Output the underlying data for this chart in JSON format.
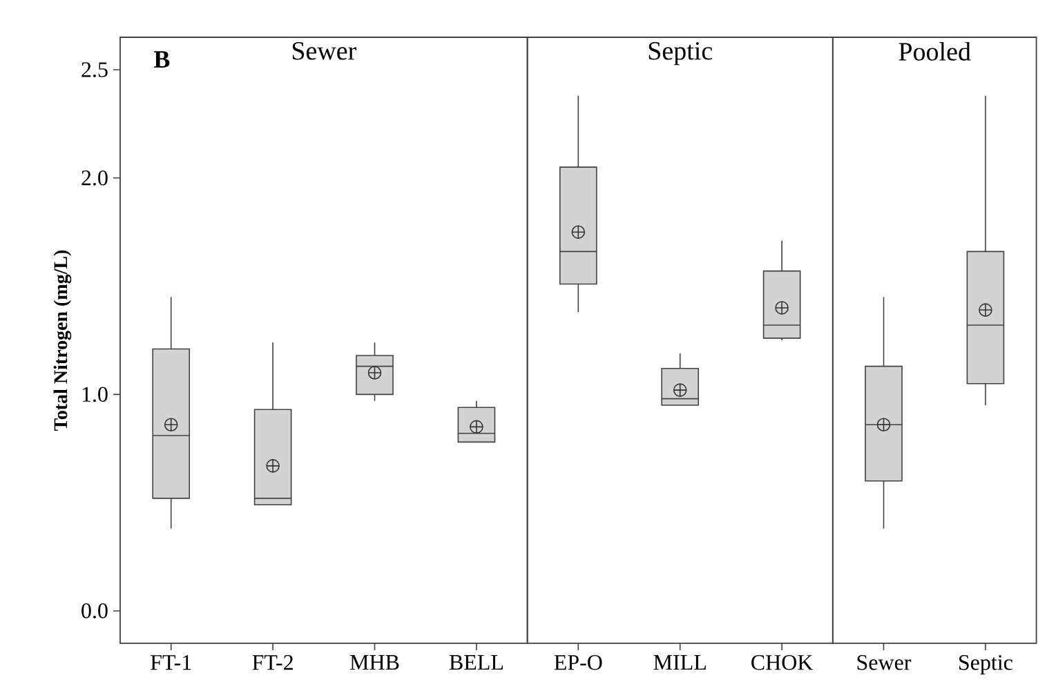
{
  "chart_data": [
    {
      "type": "box",
      "title": "Sewer",
      "ylabel": "Total Nitrogen (mg/L)",
      "annotations": [
        "B"
      ],
      "color": "#d3d3d3",
      "marker": "oplus",
      "categories": [
        "FT-1",
        "FT-2",
        "MHB",
        "BELL"
      ],
      "boxes": [
        {
          "low": 0.38,
          "q1": 0.52,
          "median": 0.81,
          "q3": 1.21,
          "high": 1.45,
          "mean": 0.86
        },
        {
          "low": 0.49,
          "q1": 0.49,
          "median": 0.52,
          "q3": 0.93,
          "high": 1.24,
          "mean": 0.67
        },
        {
          "low": 0.97,
          "q1": 1.0,
          "median": 1.13,
          "q3": 1.18,
          "high": 1.24,
          "mean": 1.1
        },
        {
          "low": 0.78,
          "q1": 0.78,
          "median": 0.82,
          "q3": 0.94,
          "high": 0.97,
          "mean": 0.85
        }
      ],
      "ylim": [
        -0.15,
        2.65
      ],
      "yticks": [
        {
          "value": 0,
          "label": "0.0"
        },
        {
          "value": 1,
          "label": "1.0"
        },
        {
          "value": 2,
          "label": "2.0"
        },
        2.5
      ]
    },
    {
      "type": "box",
      "title": "Septic",
      "color": "#d3d3d3",
      "marker": "oplus",
      "categories": [
        "EP-O",
        "MILL",
        "CHOK"
      ],
      "boxes": [
        {
          "low": 1.38,
          "q1": 1.51,
          "median": 1.66,
          "q3": 2.05,
          "high": 2.38,
          "mean": 1.75
        },
        {
          "low": 0.95,
          "q1": 0.95,
          "median": 0.98,
          "q3": 1.12,
          "high": 1.19,
          "mean": 1.02
        },
        {
          "low": 1.25,
          "q1": 1.26,
          "median": 1.32,
          "q3": 1.57,
          "high": 1.71,
          "mean": 1.4
        }
      ],
      "ylim": [
        -0.15,
        2.65
      ],
      "tick_labels": "x"
    },
    {
      "type": "box",
      "title": "Pooled",
      "color": "#d3d3d3",
      "marker": "oplus",
      "categories": [
        "Sewer",
        "Septic"
      ],
      "boxes": [
        {
          "low": 0.38,
          "q1": 0.6,
          "median": 0.86,
          "q3": 1.13,
          "high": 1.45,
          "mean": 0.86
        },
        {
          "low": 0.95,
          "q1": 1.05,
          "median": 1.32,
          "q3": 1.66,
          "high": 2.38,
          "mean": 1.39
        }
      ],
      "ylim": [
        -0.15,
        2.65
      ],
      "tick_labels": "x"
    }
  ]
}
